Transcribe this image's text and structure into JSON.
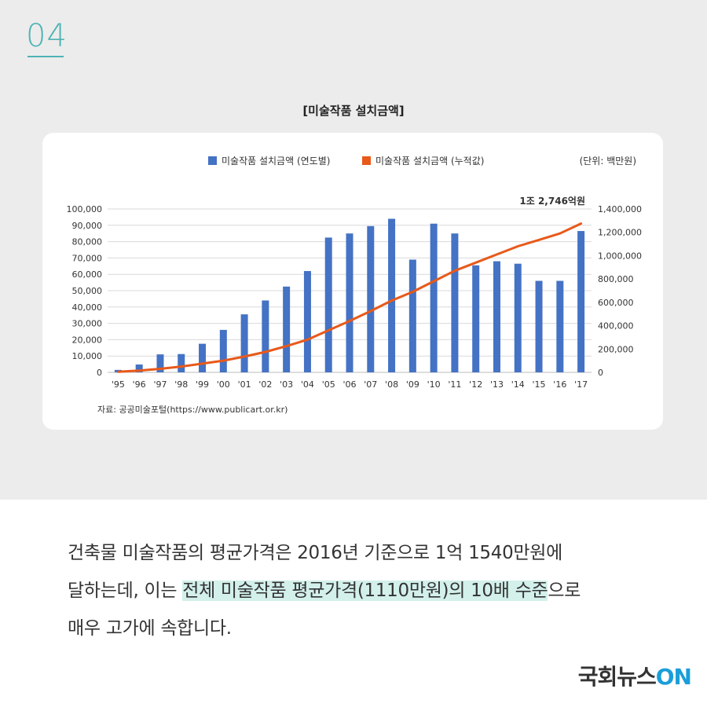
{
  "header": {
    "number": "04"
  },
  "chart_data": {
    "type": "bar+line",
    "title": "[미술작품 설치금액]",
    "unit": "(단위: 백만원)",
    "annotation": "1조 2,746억원",
    "source": "자료: 공공미술포털(https://www.publicart.or.kr)",
    "categories": [
      "'95",
      "'96",
      "'97",
      "'98",
      "'99",
      "'00",
      "'01",
      "'02",
      "'03",
      "'04",
      "'05",
      "'06",
      "'07",
      "'08",
      "'09",
      "'10",
      "'11",
      "'12",
      "'13",
      "'14",
      "'15",
      "'16",
      "'17"
    ],
    "y_left": {
      "min": 0,
      "max": 100000,
      "ticks": [
        "0",
        "10,000",
        "20,000",
        "30,000",
        "40,000",
        "50,000",
        "60,000",
        "70,000",
        "80,000",
        "90,000",
        "100,000"
      ]
    },
    "y_right": {
      "min": 0,
      "max": 1400000,
      "ticks": [
        "0",
        "200,000",
        "400,000",
        "600,000",
        "800,000",
        "1,000,000",
        "1,200,000",
        "1,400,000"
      ]
    },
    "series": [
      {
        "name": "미술작품 설치금액 (연도별)",
        "type": "bar",
        "axis": "left",
        "color": "#4472c4",
        "values": [
          1500,
          4800,
          11000,
          11200,
          17500,
          26000,
          35500,
          44000,
          52500,
          62000,
          82500,
          85000,
          89500,
          94000,
          69000,
          91000,
          85000,
          65500,
          68000,
          66500,
          56000,
          56000,
          86500
        ]
      },
      {
        "name": "미술작품 설치금액 (누적값)",
        "type": "line",
        "axis": "right",
        "color": "#e8591a",
        "values": [
          5000,
          15000,
          30000,
          50000,
          75000,
          100000,
          135000,
          175000,
          225000,
          280000,
          360000,
          440000,
          525000,
          615000,
          690000,
          780000,
          870000,
          940000,
          1010000,
          1080000,
          1135000,
          1190000,
          1274600
        ]
      }
    ]
  },
  "body": {
    "line1": "건축물 미술작품의 평균가격은 2016년 기준으로 1억 1540만원에",
    "line2_a": "달하는데, 이는 ",
    "line2_highlight": "전체 미술작품 평균가격(1110만원)의 10배 수준",
    "line2_b": "으로",
    "line3": "매우 고가에 속합니다."
  },
  "brand": {
    "text": "국회뉴스",
    "on": "ON"
  }
}
